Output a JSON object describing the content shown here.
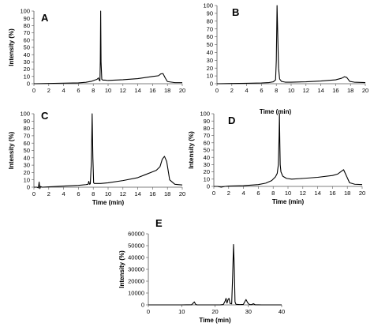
{
  "chart_data": [
    {
      "id": "A",
      "type": "line",
      "panel_label": "A",
      "xlabel": "",
      "ylabel": "Intensity (%)",
      "xlim": [
        0,
        20
      ],
      "ylim": [
        0,
        100
      ],
      "xticks": [
        0,
        2,
        4,
        6,
        8,
        10,
        12,
        14,
        16,
        18,
        20
      ],
      "yticks": [
        0,
        10,
        20,
        30,
        40,
        50,
        60,
        70,
        80,
        90,
        100
      ],
      "x": [
        0,
        2,
        4,
        6,
        7,
        7.8,
        8.2,
        8.5,
        8.7,
        8.8,
        8.9,
        8.95,
        9.0,
        9.05,
        9.15,
        9.3,
        9.6,
        10,
        12,
        14,
        15,
        16,
        16.8,
        17.1,
        17.4,
        17.7,
        18,
        19,
        20
      ],
      "y": [
        0,
        0.4,
        0.8,
        1.2,
        2,
        3.5,
        5,
        6,
        8,
        5,
        4,
        30,
        100,
        30,
        6,
        5,
        5,
        4.5,
        5.5,
        7,
        8.5,
        10,
        11,
        13.5,
        14,
        8,
        3,
        1.5,
        1.5
      ]
    },
    {
      "id": "B",
      "type": "line",
      "panel_label": "B",
      "xlabel": "Time (min)",
      "ylabel": "",
      "xlim": [
        0,
        20
      ],
      "ylim": [
        0,
        100
      ],
      "xticks": [
        0,
        2,
        4,
        6,
        8,
        10,
        12,
        14,
        16,
        18,
        20
      ],
      "yticks": [
        0,
        10,
        20,
        30,
        40,
        50,
        60,
        70,
        80,
        90,
        100
      ],
      "x": [
        0,
        2,
        4,
        6,
        7,
        7.6,
        7.9,
        8.0,
        8.1,
        8.2,
        8.3,
        8.45,
        8.7,
        9.2,
        10,
        12,
        14,
        16,
        16.8,
        17.2,
        17.5,
        17.9,
        18.5,
        20
      ],
      "y": [
        0,
        0.3,
        0.6,
        1.0,
        1.5,
        2.5,
        5,
        30,
        100,
        60,
        20,
        6,
        3,
        2,
        2,
        2.5,
        3.5,
        5,
        7,
        9,
        8,
        3,
        2,
        1.5
      ]
    },
    {
      "id": "C",
      "type": "line",
      "panel_label": "C",
      "xlabel": "Time (min)",
      "ylabel": "Intensity (%)",
      "xlim": [
        0,
        20
      ],
      "ylim": [
        0,
        100
      ],
      "xticks": [
        0,
        2,
        4,
        6,
        8,
        10,
        12,
        14,
        16,
        18,
        20
      ],
      "yticks": [
        0,
        10,
        20,
        30,
        40,
        50,
        60,
        70,
        80,
        90,
        100
      ],
      "x": [
        0,
        0.4,
        0.6,
        0.7,
        0.8,
        0.9,
        1.1,
        2,
        4,
        6,
        7,
        7.3,
        7.4,
        7.5,
        7.6,
        7.75,
        7.85,
        7.95,
        8.05,
        8.15,
        8.4,
        9,
        10,
        12,
        14,
        15,
        16,
        16.5,
        17,
        17.3,
        17.6,
        17.9,
        18.3,
        19,
        20
      ],
      "y": [
        0,
        0,
        -1,
        7,
        -2,
        1,
        0,
        0.5,
        1.5,
        2.5,
        3.5,
        4,
        8,
        4,
        4.5,
        35,
        100,
        40,
        6,
        5,
        5,
        5,
        6,
        9,
        13,
        17,
        21,
        23,
        28,
        38,
        42,
        35,
        10,
        4,
        3
      ]
    },
    {
      "id": "D",
      "type": "line",
      "panel_label": "D",
      "xlabel": "Time (min)",
      "ylabel": "Intensity (%)",
      "xlim": [
        0,
        20
      ],
      "ylim": [
        0,
        100
      ],
      "xticks": [
        0,
        2,
        4,
        6,
        8,
        10,
        12,
        14,
        16,
        18,
        20
      ],
      "yticks": [
        0,
        10,
        20,
        30,
        40,
        50,
        60,
        70,
        80,
        90,
        100
      ],
      "x": [
        0,
        0.5,
        1,
        1.5,
        2,
        4,
        6,
        7,
        7.8,
        8.3,
        8.55,
        8.7,
        8.8,
        8.85,
        8.9,
        8.95,
        9.05,
        9.3,
        9.8,
        10.5,
        12,
        14,
        16,
        16.7,
        17.1,
        17.5,
        17.9,
        18.3,
        19,
        20
      ],
      "y": [
        0,
        0,
        -1,
        0,
        0.5,
        1,
        2.5,
        4.5,
        8,
        13,
        18,
        30,
        70,
        100,
        60,
        30,
        20,
        14,
        11,
        10,
        11,
        12.5,
        15,
        17,
        20,
        23,
        14,
        5,
        3,
        2.5
      ]
    },
    {
      "id": "E",
      "type": "line",
      "panel_label": "E",
      "xlabel": "Time (min)",
      "ylabel": "Intensity (%)",
      "xlim": [
        0,
        40
      ],
      "ylim": [
        0,
        60000
      ],
      "xticks": [
        0,
        10,
        20,
        30,
        40
      ],
      "yticks": [
        0,
        10000,
        20000,
        30000,
        40000,
        50000,
        60000
      ],
      "x": [
        0,
        5,
        10,
        13,
        13.8,
        14.2,
        14.6,
        15.5,
        18,
        20,
        21.5,
        22.5,
        23,
        23.3,
        23.6,
        23.9,
        24.2,
        24.5,
        25,
        25.3,
        25.55,
        25.8,
        26,
        26.3,
        26.7,
        27.5,
        28.5,
        29.3,
        29.8,
        30.3,
        31,
        31.5,
        32,
        34,
        40
      ],
      "y": [
        0,
        0,
        0,
        150,
        2500,
        400,
        0,
        0,
        0,
        0,
        0,
        300,
        3000,
        5500,
        1500,
        4500,
        5500,
        1200,
        900,
        25000,
        51000,
        30000,
        2500,
        500,
        400,
        250,
        400,
        4500,
        1800,
        300,
        200,
        1000,
        150,
        0,
        0
      ]
    }
  ]
}
